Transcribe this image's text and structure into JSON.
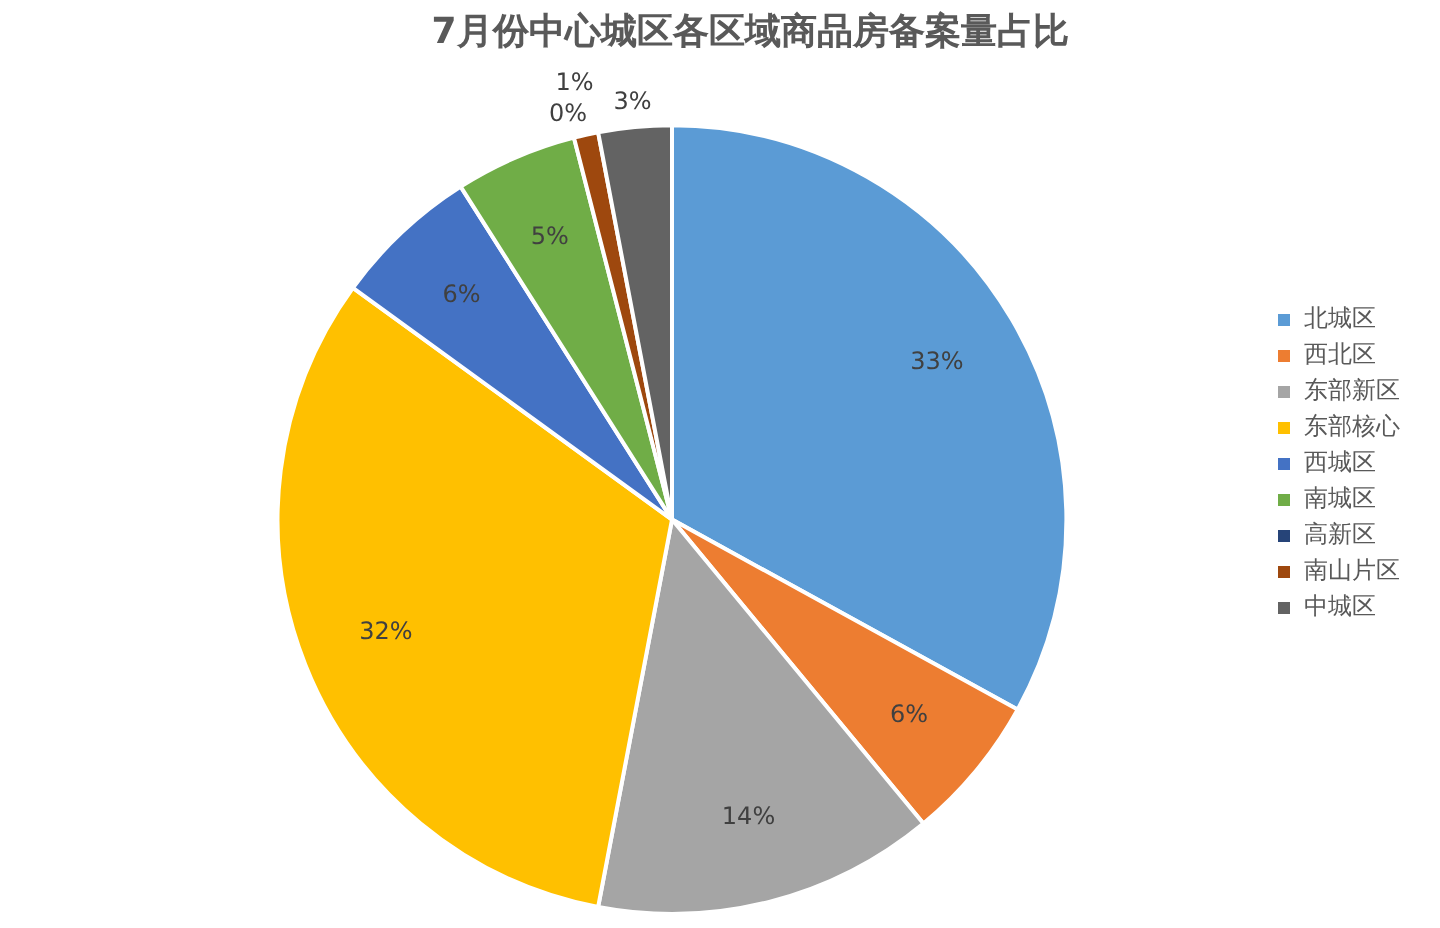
{
  "chart_data": {
    "type": "pie",
    "title": "7月份中心城区各区域商品房备案量占比",
    "categories": [
      "北城区",
      "西北区",
      "东部新区",
      "东部核心",
      "西城区",
      "南城区",
      "高新区",
      "南山片区",
      "中城区"
    ],
    "values": [
      33,
      6,
      14,
      32,
      6,
      5,
      0,
      1,
      3
    ],
    "value_labels": [
      "33%",
      "6%",
      "14%",
      "32%",
      "6%",
      "5%",
      "0%",
      "1%",
      "3%"
    ],
    "colors": [
      "#5b9bd5",
      "#ed7d31",
      "#a5a5a5",
      "#ffc000",
      "#4472c4",
      "#70ad47",
      "#264478",
      "#9e480e",
      "#636363"
    ],
    "legend": "right"
  }
}
